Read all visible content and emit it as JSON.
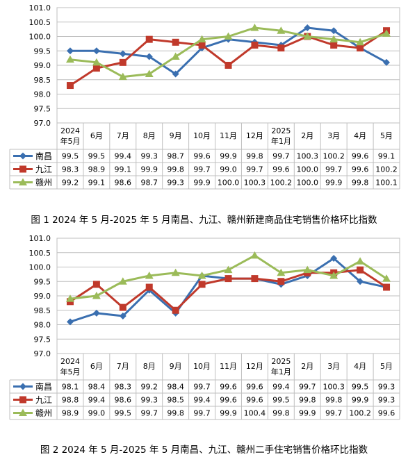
{
  "colors": {
    "nanchang": "#3a6fb0",
    "jiujiang": "#c0392b",
    "ganzhou": "#9bbb59",
    "grid": "#bfbfbf",
    "axis": "#808080"
  },
  "chart_data": [
    {
      "type": "line",
      "title": "图 1 2024 年 5 月-2025 年 5 月南昌、九江、赣州新建商品住宅销售价格环比指数",
      "categories": [
        "2024年5月",
        "6月",
        "7月",
        "8月",
        "9月",
        "10月",
        "11月",
        "12月",
        "2025年1月",
        "2月",
        "3月",
        "4月",
        "5月"
      ],
      "category_lines": [
        [
          "2024",
          "年5月"
        ],
        [
          "6月"
        ],
        [
          "7月"
        ],
        [
          "8月"
        ],
        [
          "9月"
        ],
        [
          "10月"
        ],
        [
          "11月"
        ],
        [
          "12月"
        ],
        [
          "2025",
          "年1月"
        ],
        [
          "2月"
        ],
        [
          "3月"
        ],
        [
          "4月"
        ],
        [
          "5月"
        ]
      ],
      "yticks": [
        "97.0",
        "97.5",
        "98.0",
        "98.5",
        "99.0",
        "99.5",
        "100.0",
        "100.5",
        "101.0"
      ],
      "ylim": [
        97.0,
        101.0
      ],
      "grid": true,
      "legend": "data-table-left",
      "series": [
        {
          "name": "南昌",
          "marker": "diamond",
          "values": [
            99.5,
            99.5,
            99.4,
            99.3,
            98.7,
            99.6,
            99.9,
            99.8,
            99.7,
            100.3,
            100.2,
            99.6,
            99.1
          ],
          "labels": [
            "99.5",
            "99.5",
            "99.4",
            "99.3",
            "98.7",
            "99.6",
            "99.9",
            "99.8",
            "99.7",
            "100.3",
            "100.2",
            "99.6",
            "99.1"
          ]
        },
        {
          "name": "九江",
          "marker": "square",
          "values": [
            98.3,
            98.9,
            99.1,
            99.9,
            99.8,
            99.7,
            99.0,
            99.7,
            99.6,
            100.0,
            99.7,
            99.6,
            100.2
          ],
          "labels": [
            "98.3",
            "98.9",
            "99.1",
            "99.9",
            "99.8",
            "99.7",
            "99.0",
            "99.7",
            "99.6",
            "100.0",
            "99.7",
            "99.6",
            "100.2"
          ]
        },
        {
          "name": "赣州",
          "marker": "triangle",
          "values": [
            99.2,
            99.1,
            98.6,
            98.7,
            99.3,
            99.9,
            100.0,
            100.3,
            100.2,
            100.0,
            99.9,
            99.8,
            100.1
          ],
          "labels": [
            "99.2",
            "99.1",
            "98.6",
            "98.7",
            "99.3",
            "99.9",
            "100.0",
            "100.3",
            "100.2",
            "100.0",
            "99.9",
            "99.8",
            "100.1"
          ]
        }
      ]
    },
    {
      "type": "line",
      "title": "图 2 2024 年 5 月-2025 年 5 月南昌、九江、赣州二手住宅销售价格环比指数",
      "categories": [
        "2024年5月",
        "6月",
        "7月",
        "8月",
        "9月",
        "10月",
        "11月",
        "12月",
        "2025年1月",
        "2月",
        "3月",
        "4月",
        "5月"
      ],
      "category_lines": [
        [
          "2024",
          "年5月"
        ],
        [
          "6月"
        ],
        [
          "7月"
        ],
        [
          "8月"
        ],
        [
          "9月"
        ],
        [
          "10月"
        ],
        [
          "11月"
        ],
        [
          "12月"
        ],
        [
          "2025",
          "年1月"
        ],
        [
          "2月"
        ],
        [
          "3月"
        ],
        [
          "4月"
        ],
        [
          "5月"
        ]
      ],
      "yticks": [
        "97.0",
        "97.5",
        "98.0",
        "98.5",
        "99.0",
        "99.5",
        "100.0",
        "100.5",
        "101.0"
      ],
      "ylim": [
        97.0,
        101.0
      ],
      "grid": true,
      "legend": "data-table-left",
      "series": [
        {
          "name": "南昌",
          "marker": "diamond",
          "values": [
            98.1,
            98.4,
            98.3,
            99.2,
            98.4,
            99.7,
            99.6,
            99.6,
            99.4,
            99.7,
            100.3,
            99.5,
            99.3
          ],
          "labels": [
            "98.1",
            "98.4",
            "98.3",
            "99.2",
            "98.4",
            "99.7",
            "99.6",
            "99.6",
            "99.4",
            "99.7",
            "100.3",
            "99.5",
            "99.3"
          ]
        },
        {
          "name": "九江",
          "marker": "square",
          "values": [
            98.8,
            99.4,
            98.6,
            99.3,
            98.5,
            99.4,
            99.6,
            99.6,
            99.5,
            99.8,
            99.8,
            99.9,
            99.3
          ],
          "labels": [
            "98.8",
            "99.4",
            "98.6",
            "99.3",
            "98.5",
            "99.4",
            "99.6",
            "99.6",
            "99.5",
            "99.8",
            "99.8",
            "99.9",
            "99.3"
          ]
        },
        {
          "name": "赣州",
          "marker": "triangle",
          "values": [
            98.9,
            99.0,
            99.5,
            99.7,
            99.8,
            99.7,
            99.9,
            100.4,
            99.8,
            99.9,
            99.7,
            100.2,
            99.6
          ],
          "labels": [
            "98.9",
            "99.0",
            "99.5",
            "99.7",
            "99.8",
            "99.7",
            "99.9",
            "100.4",
            "99.8",
            "99.9",
            "99.7",
            "100.2",
            "99.6"
          ]
        }
      ]
    }
  ]
}
